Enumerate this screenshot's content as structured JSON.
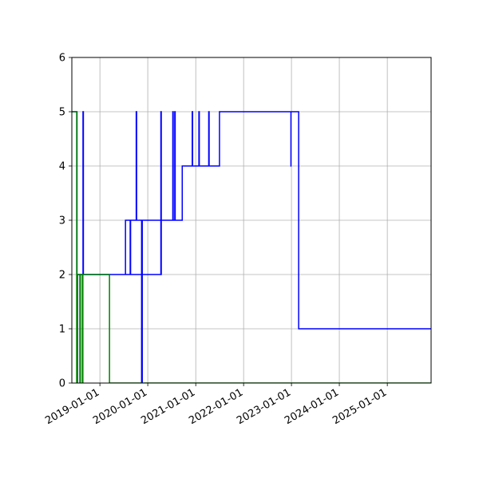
{
  "chart_data": {
    "type": "line",
    "title": "",
    "xlabel": "",
    "ylabel": "",
    "xlim": [
      "2018-06-01",
      "2025-12-01"
    ],
    "ylim": [
      0,
      6
    ],
    "grid": true,
    "x_ticks": [
      "2019-01-01",
      "2020-01-01",
      "2021-01-01",
      "2022-01-01",
      "2023-01-01",
      "2024-01-01",
      "2025-01-01"
    ],
    "y_ticks": [
      0,
      1,
      2,
      3,
      4,
      5,
      6
    ],
    "series": [
      {
        "color": "#0000ff",
        "step": true,
        "points": [
          [
            "2018-06-01",
            5
          ],
          [
            "2018-07-10",
            5
          ],
          [
            "2018-07-10",
            0
          ],
          [
            "2018-07-14",
            0
          ],
          [
            "2018-07-14",
            2
          ],
          [
            "2018-08-25",
            2
          ],
          [
            "2018-08-25",
            5
          ],
          [
            "2018-08-28",
            5
          ],
          [
            "2018-08-28",
            2
          ],
          [
            "2020-04-10",
            2
          ],
          [
            "2020-04-10",
            5
          ],
          [
            "2020-04-13",
            5
          ],
          [
            "2020-04-13",
            2
          ],
          [
            "2019-07-15",
            2
          ],
          [
            "2019-07-15",
            3
          ],
          [
            "2019-08-20",
            3
          ],
          [
            "2019-08-20",
            2
          ],
          [
            "2019-08-23",
            2
          ],
          [
            "2019-08-23",
            3
          ],
          [
            "2019-10-05",
            3
          ],
          [
            "2019-10-05",
            5
          ],
          [
            "2019-10-08",
            5
          ],
          [
            "2019-10-08",
            3
          ],
          [
            "2019-11-15",
            3
          ],
          [
            "2019-11-15",
            0
          ],
          [
            "2019-11-20",
            0
          ],
          [
            "2019-11-20",
            3
          ],
          [
            "2020-07-10",
            3
          ],
          [
            "2020-07-10",
            5
          ],
          [
            "2020-07-13",
            5
          ],
          [
            "2020-07-13",
            3
          ],
          [
            "2020-07-25",
            3
          ],
          [
            "2020-07-25",
            5
          ],
          [
            "2020-07-28",
            5
          ],
          [
            "2020-07-28",
            3
          ],
          [
            "2020-09-20",
            3
          ],
          [
            "2020-09-20",
            4
          ],
          [
            "2020-12-05",
            4
          ],
          [
            "2020-12-05",
            5
          ],
          [
            "2020-12-08",
            5
          ],
          [
            "2020-12-08",
            4
          ],
          [
            "2021-01-25",
            4
          ],
          [
            "2021-01-25",
            5
          ],
          [
            "2021-01-28",
            5
          ],
          [
            "2021-01-28",
            4
          ],
          [
            "2021-04-10",
            4
          ],
          [
            "2021-04-10",
            5
          ],
          [
            "2021-04-13",
            5
          ],
          [
            "2021-04-13",
            4
          ],
          [
            "2021-07-01",
            4
          ],
          [
            "2021-07-01",
            5
          ],
          [
            "2022-12-28",
            5
          ],
          [
            "2022-12-28",
            4
          ],
          [
            "2023-01-01",
            4
          ],
          [
            "2022-12-28",
            4
          ],
          [
            "2022-12-28",
            5
          ],
          [
            "2023-02-25",
            5
          ],
          [
            "2023-02-25",
            1
          ],
          [
            "2025-12-01",
            1
          ]
        ]
      },
      {
        "color": "#008000",
        "step": true,
        "points": [
          [
            "2018-06-01",
            5
          ],
          [
            "2018-07-08",
            5
          ],
          [
            "2018-07-08",
            0
          ],
          [
            "2018-07-12",
            0
          ],
          [
            "2018-07-12",
            2
          ],
          [
            "2018-08-01",
            2
          ],
          [
            "2018-08-01",
            0
          ],
          [
            "2018-08-05",
            0
          ],
          [
            "2018-08-05",
            2
          ],
          [
            "2018-08-20",
            2
          ],
          [
            "2018-08-20",
            0
          ],
          [
            "2018-08-24",
            0
          ],
          [
            "2018-08-24",
            2
          ],
          [
            "2019-03-15",
            2
          ],
          [
            "2019-03-15",
            0
          ],
          [
            "2025-12-01",
            0
          ]
        ]
      }
    ]
  }
}
